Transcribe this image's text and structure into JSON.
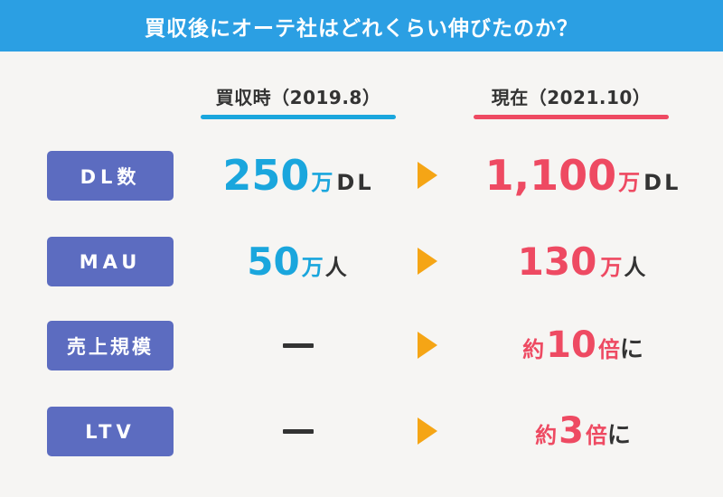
{
  "header": {
    "title": "買収後にオーテ社はどれくらい伸びたのか？"
  },
  "columns": {
    "before": "買収時（2019.8）",
    "after": "現在（2021.10）"
  },
  "colors": {
    "header": "#2b9fe3",
    "before": "#1aa6dd",
    "after": "#ee4a62",
    "label_bg": "#5c6cc0",
    "arrow": "#f5a515"
  },
  "rows": [
    {
      "label": "DL数",
      "before_value": "250",
      "before_unit_1": "万",
      "before_unit_2": "DL",
      "after_value": "1,100",
      "after_unit_1": "万",
      "after_unit_2": "DL"
    },
    {
      "label": "MAU",
      "before_value": "50",
      "before_unit_1": "万",
      "before_unit_2": "人",
      "after_value": "130",
      "after_unit_1": "万",
      "after_unit_2": "人"
    },
    {
      "label": "売上規模",
      "before_value": "ー",
      "after_prefix": "約",
      "after_value": "10",
      "after_suffix_1": "倍",
      "after_suffix_2": "に"
    },
    {
      "label": "LTV",
      "before_value": "ー",
      "after_prefix": "約",
      "after_value": "3",
      "after_suffix_1": "倍",
      "after_suffix_2": "に"
    }
  ]
}
